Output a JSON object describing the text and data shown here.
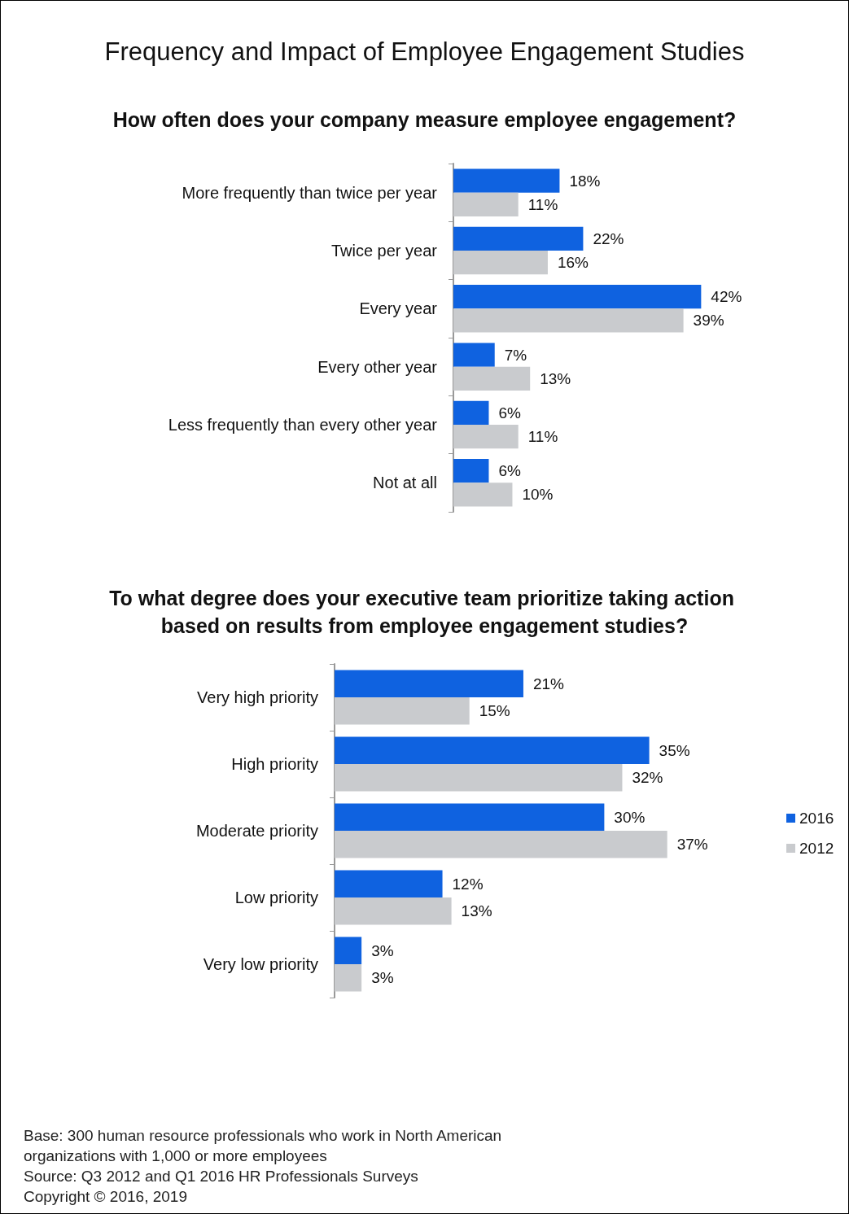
{
  "chart_data": [
    {
      "type": "bar",
      "orientation": "horizontal",
      "title": "Frequency and Impact of Employee Engagement Studies",
      "subtitle": "How often does your company measure employee engagement?",
      "categories": [
        "More frequently than twice per year",
        "Twice per year",
        "Every year",
        "Every other year",
        "Less frequently than every other year",
        "Not at all"
      ],
      "series": [
        {
          "color": "#0f62e0",
          "values": [
            18,
            22,
            42,
            7,
            6,
            6
          ],
          "value_labels": [
            "18%",
            "22%",
            "42%",
            "7%",
            "6%",
            "6%"
          ]
        },
        {
          "color": "#c9cbce",
          "values": [
            11,
            16,
            39,
            13,
            11,
            10
          ],
          "value_labels": [
            "11%",
            "16%",
            "39%",
            "13%",
            "11%",
            "10%"
          ]
        }
      ],
      "legend": false,
      "grid": false
    },
    {
      "type": "bar",
      "orientation": "horizontal",
      "title": "To what degree does your executive team prioritize taking action based on results from employee engagement studies?",
      "categories": [
        "Very high priority",
        "High priority",
        "Moderate priority",
        "Low priority",
        "Very low priority"
      ],
      "series": [
        {
          "name": "2016",
          "color": "#0f62e0",
          "values": [
            21,
            35,
            30,
            12,
            3
          ],
          "value_labels": [
            "21%",
            "35%",
            "30%",
            "12%",
            "3%"
          ]
        },
        {
          "name": "2012",
          "color": "#c9cbce",
          "values": [
            15,
            32,
            37,
            13,
            3
          ],
          "value_labels": [
            "15%",
            "32%",
            "37%",
            "13%",
            "3%"
          ]
        }
      ],
      "legend": "right",
      "grid": false,
      "annotations": [
        "Base:   300 human resource professionals who work in North American organizations with 1,000 or more employees",
        "Source:   Q3 2012 and Q1 2016 HR Professionals Surveys",
        "Copyright © 2016, 2019"
      ]
    }
  ]
}
